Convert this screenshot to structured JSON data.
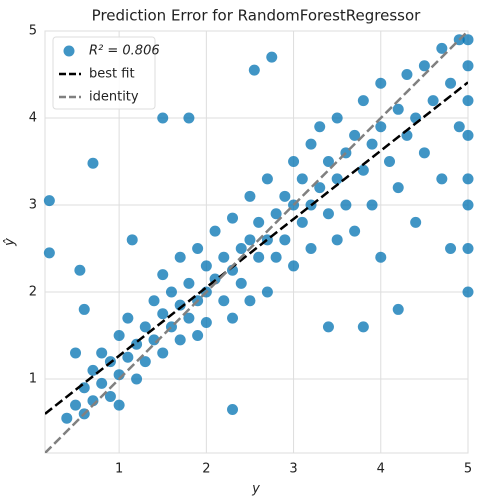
{
  "chart_data": {
    "type": "scatter",
    "title": "Prediction Error for RandomForestRegressor",
    "x_label": "y",
    "y_label": "ŷ",
    "xlim": [
      0.15,
      5.0
    ],
    "ylim": [
      0.15,
      5.0
    ],
    "xticks": [
      1,
      2,
      3,
      4,
      5
    ],
    "yticks": [
      1,
      2,
      3,
      4,
      5
    ],
    "grid": true,
    "legend": "upper left",
    "series": [
      {
        "name": "R² = 0.806",
        "color": "#0072b2",
        "x": [
          0.4,
          0.5,
          0.6,
          0.6,
          0.7,
          0.7,
          0.8,
          0.8,
          0.9,
          0.9,
          1.0,
          1.0,
          1.0,
          1.1,
          1.1,
          1.2,
          1.2,
          1.3,
          1.3,
          1.4,
          1.4,
          1.5,
          1.5,
          1.5,
          1.6,
          1.6,
          1.7,
          1.7,
          1.7,
          1.8,
          1.8,
          1.9,
          1.9,
          1.9,
          2.0,
          2.0,
          2.0,
          2.1,
          2.1,
          2.2,
          2.2,
          2.3,
          2.3,
          2.3,
          2.4,
          2.4,
          2.5,
          2.5,
          2.5,
          2.6,
          2.6,
          2.7,
          2.7,
          2.7,
          2.8,
          2.8,
          2.9,
          2.9,
          3.0,
          3.0,
          3.0,
          3.1,
          3.1,
          3.2,
          3.2,
          3.2,
          3.3,
          3.3,
          3.4,
          3.4,
          3.5,
          3.5,
          3.5,
          3.6,
          3.6,
          3.7,
          3.7,
          3.8,
          3.8,
          3.9,
          3.9,
          4.0,
          4.0,
          4.0,
          4.1,
          4.2,
          4.2,
          4.3,
          4.3,
          4.4,
          4.4,
          4.5,
          4.5,
          4.6,
          4.7,
          4.7,
          4.8,
          4.8,
          4.9,
          4.9,
          5.0,
          5.0,
          5.0,
          5.0,
          5.0,
          5.0,
          5.0,
          5.0,
          0.2,
          0.2,
          0.7,
          0.55,
          0.6,
          0.5,
          1.15,
          1.8,
          2.55,
          2.75,
          3.4,
          4.2,
          3.8,
          2.3,
          1.5
        ],
        "values": [
          0.55,
          0.7,
          0.9,
          0.6,
          1.1,
          0.75,
          0.95,
          1.3,
          0.8,
          1.2,
          1.05,
          1.5,
          0.7,
          1.25,
          1.7,
          1.0,
          1.4,
          1.6,
          1.2,
          1.9,
          1.45,
          1.3,
          1.75,
          2.2,
          1.6,
          2.0,
          1.45,
          1.85,
          2.4,
          1.7,
          2.1,
          1.9,
          2.5,
          1.5,
          2.0,
          2.3,
          1.65,
          2.15,
          2.7,
          1.9,
          2.4,
          2.25,
          2.85,
          1.7,
          2.5,
          2.1,
          2.6,
          3.1,
          1.9,
          2.4,
          2.8,
          2.6,
          3.3,
          2.0,
          2.9,
          2.4,
          3.1,
          2.6,
          3.0,
          3.5,
          2.3,
          2.8,
          3.3,
          3.0,
          3.7,
          2.5,
          3.2,
          3.9,
          2.9,
          3.5,
          3.3,
          4.0,
          2.6,
          3.6,
          3.0,
          3.8,
          2.7,
          3.4,
          4.2,
          3.7,
          3.0,
          3.9,
          4.4,
          2.4,
          3.5,
          4.1,
          3.2,
          4.5,
          3.8,
          4.0,
          2.8,
          4.6,
          3.6,
          4.2,
          4.8,
          3.3,
          4.4,
          2.5,
          4.9,
          3.9,
          2.0,
          2.5,
          3.0,
          3.3,
          3.8,
          4.2,
          4.6,
          4.9,
          3.05,
          2.45,
          3.48,
          2.25,
          1.8,
          1.3,
          2.6,
          4.0,
          4.55,
          4.7,
          1.6,
          1.8,
          1.6,
          0.65,
          4.0
        ]
      }
    ],
    "lines": [
      {
        "name": "best fit",
        "color": "#000000",
        "x": [
          0.15,
          5.0
        ],
        "y": [
          0.6,
          4.41
        ]
      },
      {
        "name": "identity",
        "color": "#808080",
        "x": [
          0.15,
          5.0
        ],
        "y": [
          0.15,
          5.0
        ]
      }
    ]
  }
}
